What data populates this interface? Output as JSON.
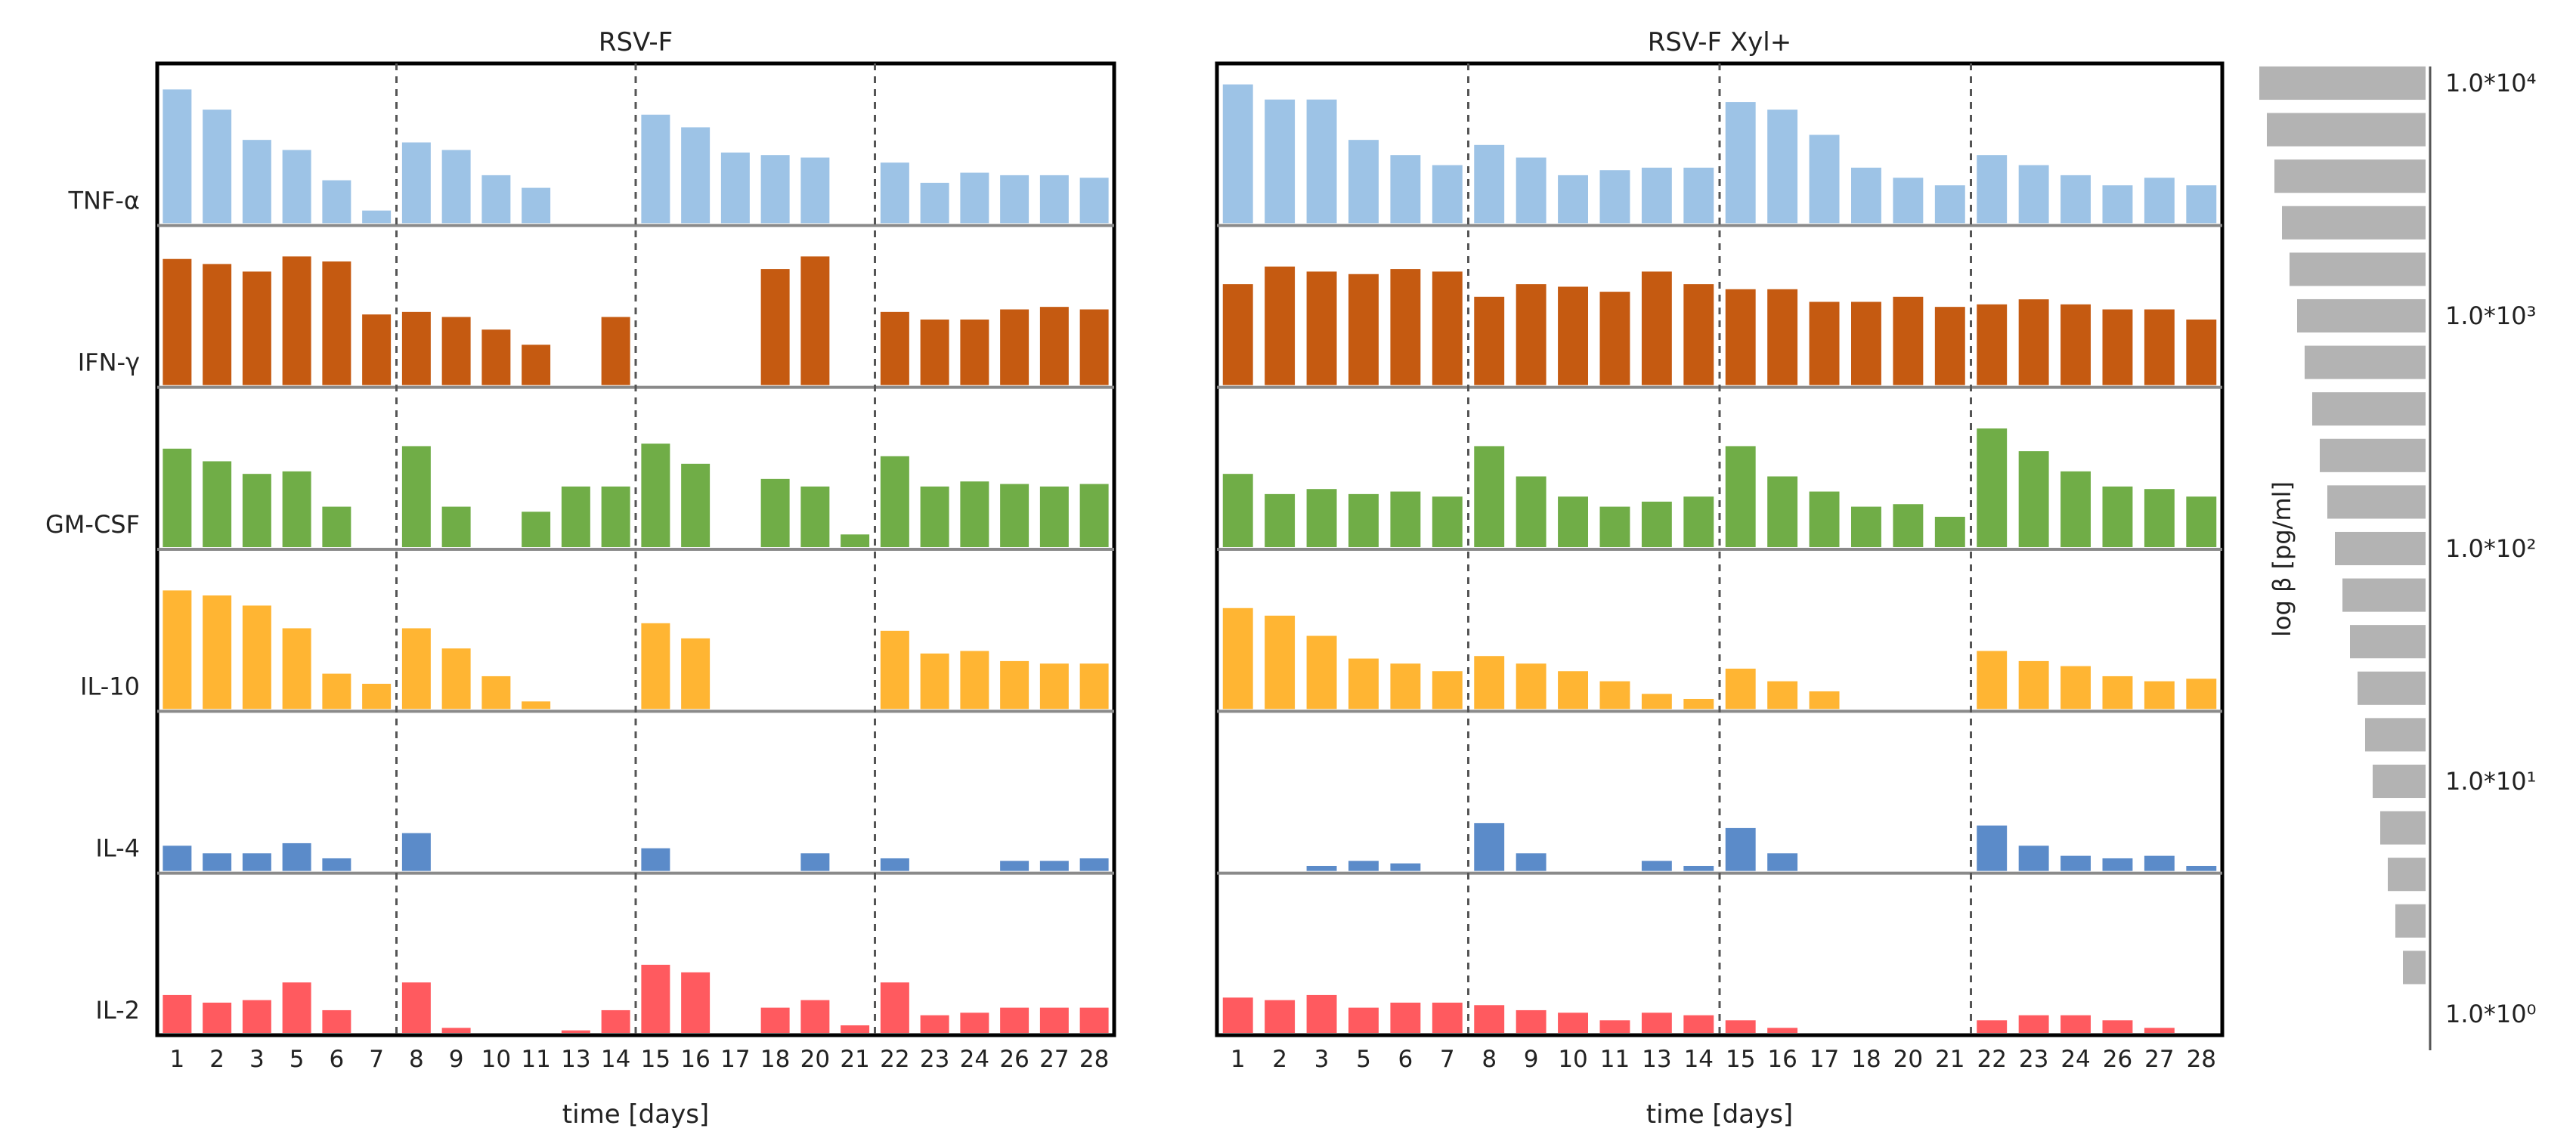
{
  "chart_data": [
    {
      "type": "bar",
      "title": "RSV-F",
      "xlabel": "time [days]",
      "categories": [
        "1",
        "2",
        "3",
        "5",
        "6",
        "7",
        "8",
        "9",
        "10",
        "11",
        "13",
        "14",
        "15",
        "16",
        "17",
        "18",
        "20",
        "21",
        "22",
        "23",
        "24",
        "26",
        "27",
        "28"
      ],
      "week_separators_after_index": [
        5,
        11,
        17
      ],
      "row_max": 6.0,
      "series": [
        {
          "name": "TNF-α",
          "color": "#9DC3E6",
          "values": [
            5.3,
            4.5,
            3.3,
            2.9,
            1.7,
            0.5,
            3.2,
            2.9,
            1.9,
            1.4,
            0,
            0,
            4.3,
            3.8,
            2.8,
            2.7,
            2.6,
            0,
            2.4,
            1.6,
            2.0,
            1.9,
            1.9,
            1.8
          ]
        },
        {
          "name": "IFN-γ",
          "color": "#C55A11",
          "values": [
            5.0,
            4.8,
            4.5,
            5.1,
            4.9,
            2.8,
            2.9,
            2.7,
            2.2,
            1.6,
            0,
            2.7,
            0,
            0,
            0,
            4.6,
            5.1,
            0,
            2.9,
            2.6,
            2.6,
            3.0,
            3.1,
            3.0
          ]
        },
        {
          "name": "GM-CSF",
          "color": "#70AD47",
          "values": [
            3.9,
            3.4,
            2.9,
            3.0,
            1.6,
            0,
            4.0,
            1.6,
            0,
            1.4,
            2.4,
            2.4,
            4.1,
            3.3,
            0,
            2.7,
            2.4,
            0.5,
            3.6,
            2.4,
            2.6,
            2.5,
            2.4,
            2.5
          ]
        },
        {
          "name": "IL-10",
          "color": "#FFB533",
          "values": [
            4.7,
            4.5,
            4.1,
            3.2,
            1.4,
            1.0,
            3.2,
            2.4,
            1.3,
            0.3,
            0,
            0,
            3.4,
            2.8,
            0,
            0,
            0,
            0,
            3.1,
            2.2,
            2.3,
            1.9,
            1.8,
            1.8
          ]
        },
        {
          "name": "IL-4",
          "color": "#5B8BC9",
          "values": [
            1.0,
            0.7,
            0.7,
            1.1,
            0.5,
            0,
            1.5,
            0,
            0,
            0,
            0,
            0,
            0.9,
            0,
            0,
            0,
            0.7,
            0,
            0.5,
            0,
            0,
            0.4,
            0.4,
            0.5
          ]
        },
        {
          "name": "IL-2",
          "color": "#FF5A5F",
          "values": [
            1.5,
            1.2,
            1.3,
            2.0,
            0.9,
            0,
            2.0,
            0.2,
            0,
            0,
            0.1,
            0.9,
            2.7,
            2.4,
            0,
            1.0,
            1.3,
            0.3,
            2.0,
            0.7,
            0.8,
            1.0,
            1.0,
            1.0
          ]
        }
      ]
    },
    {
      "type": "bar",
      "title": "RSV-F Xyl+",
      "xlabel": "time [days]",
      "categories": [
        "1",
        "2",
        "3",
        "5",
        "6",
        "7",
        "8",
        "9",
        "10",
        "11",
        "13",
        "14",
        "15",
        "16",
        "17",
        "18",
        "20",
        "21",
        "22",
        "23",
        "24",
        "26",
        "27",
        "28"
      ],
      "week_separators_after_index": [
        5,
        11,
        17
      ],
      "row_max": 6.0,
      "series": [
        {
          "name": "TNF-α",
          "color": "#9DC3E6",
          "values": [
            5.5,
            4.9,
            4.9,
            3.3,
            2.7,
            2.3,
            3.1,
            2.6,
            1.9,
            2.1,
            2.2,
            2.2,
            4.8,
            4.5,
            3.5,
            2.2,
            1.8,
            1.5,
            2.7,
            2.3,
            1.9,
            1.5,
            1.8,
            1.5
          ]
        },
        {
          "name": "IFN-γ",
          "color": "#C55A11",
          "values": [
            4.0,
            4.7,
            4.5,
            4.4,
            4.6,
            4.5,
            3.5,
            4.0,
            3.9,
            3.7,
            4.5,
            4.0,
            3.8,
            3.8,
            3.3,
            3.3,
            3.5,
            3.1,
            3.2,
            3.4,
            3.2,
            3.0,
            3.0,
            2.6
          ]
        },
        {
          "name": "GM-CSF",
          "color": "#70AD47",
          "values": [
            2.9,
            2.1,
            2.3,
            2.1,
            2.2,
            2.0,
            4.0,
            2.8,
            2.0,
            1.6,
            1.8,
            2.0,
            4.0,
            2.8,
            2.2,
            1.6,
            1.7,
            1.2,
            4.7,
            3.8,
            3.0,
            2.4,
            2.3,
            2.0
          ]
        },
        {
          "name": "IL-10",
          "color": "#FFB533",
          "values": [
            4.0,
            3.7,
            2.9,
            2.0,
            1.8,
            1.5,
            2.1,
            1.8,
            1.5,
            1.1,
            0.6,
            0.4,
            1.6,
            1.1,
            0.7,
            0,
            0,
            0,
            2.3,
            1.9,
            1.7,
            1.3,
            1.1,
            1.2
          ]
        },
        {
          "name": "IL-4",
          "color": "#5B8BC9",
          "values": [
            0,
            0,
            0.2,
            0.4,
            0.3,
            0,
            1.9,
            0.7,
            0,
            0,
            0.4,
            0.2,
            1.7,
            0.7,
            0,
            0,
            0,
            0,
            1.8,
            1.0,
            0.6,
            0.5,
            0.6,
            0.2
          ]
        },
        {
          "name": "IL-2",
          "color": "#FF5A5F",
          "values": [
            1.4,
            1.3,
            1.5,
            1.0,
            1.2,
            1.2,
            1.1,
            0.9,
            0.8,
            0.5,
            0.8,
            0.7,
            0.5,
            0.2,
            0,
            0,
            0,
            0,
            0.5,
            0.7,
            0.7,
            0.5,
            0.2,
            0
          ]
        }
      ]
    }
  ],
  "legend_scale": {
    "label": "log β [pg/ml]",
    "ticks": [
      "1.0*10⁴",
      "1.0*10³",
      "1.0*10²",
      "1.0*10¹",
      "1.0*10⁰"
    ],
    "tick_log_values": [
      4,
      3,
      2,
      1,
      0
    ],
    "bar_log_values": [
      4.0,
      3.8,
      3.6,
      3.4,
      3.2,
      3.0,
      2.8,
      2.6,
      2.4,
      2.2,
      2.0,
      1.8,
      1.6,
      1.4,
      1.2,
      1.0,
      0.8,
      0.6,
      0.4,
      0.2
    ],
    "bar_color": "#B3B3B3"
  }
}
